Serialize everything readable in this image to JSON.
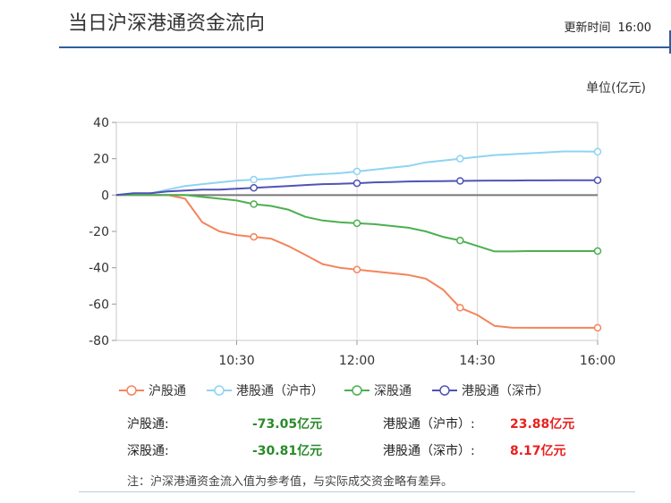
{
  "header": {
    "title": "当日沪深港通资金流向",
    "update_label": "更新时间",
    "update_time": "16:00",
    "unit": "单位(亿元)"
  },
  "chart_data": {
    "type": "line",
    "x_ticks": [
      "10:30",
      "12:00",
      "14:30",
      "16:00"
    ],
    "yticks": [
      40,
      20,
      0,
      -20,
      -40,
      -60,
      -80
    ],
    "ylim": [
      -80,
      40
    ],
    "grid": true,
    "legend_position": "bottom",
    "series": [
      {
        "name": "沪股通",
        "color": "#f4845b",
        "marker_indices": [
          8,
          14,
          20,
          28
        ],
        "values": [
          0,
          0,
          0,
          0,
          -2,
          -15,
          -20,
          -22,
          -23,
          -24,
          -28,
          -33,
          -38,
          -40,
          -41,
          -42,
          -43,
          -44,
          -46,
          -52,
          -62,
          -66,
          -72,
          -73,
          -73.05,
          -73.05,
          -73.05,
          -73.05,
          -73.05
        ]
      },
      {
        "name": "港股通（沪市）",
        "color": "#8fd3f2",
        "marker_indices": [
          8,
          14,
          20,
          28
        ],
        "values": [
          0,
          0,
          1,
          3,
          5,
          6,
          7,
          8,
          8.5,
          9,
          10,
          11,
          11.5,
          12,
          13,
          14,
          15,
          16,
          18,
          19,
          20,
          21,
          22,
          22.5,
          23,
          23.5,
          24,
          24,
          23.88
        ]
      },
      {
        "name": "深股通",
        "color": "#4caf50",
        "marker_indices": [
          8,
          14,
          20,
          28
        ],
        "values": [
          0,
          0,
          0,
          0,
          0,
          -1,
          -2,
          -3,
          -5,
          -6,
          -8,
          -12,
          -14,
          -15,
          -15.5,
          -16,
          -17,
          -18,
          -20,
          -23,
          -25,
          -28,
          -31,
          -31,
          -30.81,
          -30.81,
          -30.81,
          -30.81,
          -30.81
        ]
      },
      {
        "name": "港股通（深市）",
        "color": "#4f53b5",
        "marker_indices": [
          8,
          14,
          20,
          28
        ],
        "values": [
          0,
          1,
          1,
          2,
          2.5,
          3,
          3,
          3.5,
          4,
          4.5,
          5,
          5.5,
          6,
          6.2,
          6.5,
          7,
          7.2,
          7.5,
          7.6,
          7.7,
          7.8,
          7.9,
          8,
          8,
          8.1,
          8.1,
          8.15,
          8.17,
          8.17
        ]
      }
    ]
  },
  "summary": {
    "hgt_label": "沪股通:",
    "hgt_value": "-73.05亿元",
    "ggt_sh_label": "港股通（沪市）:",
    "ggt_sh_value": "23.88亿元",
    "sgt_label": "深股通:",
    "sgt_value": "-30.81亿元",
    "ggt_sz_label": "港股通（深市）:",
    "ggt_sz_value": "8.17亿元"
  },
  "note": "注：沪深港通资金流入值为参考值，与实际成交资金略有差异。"
}
